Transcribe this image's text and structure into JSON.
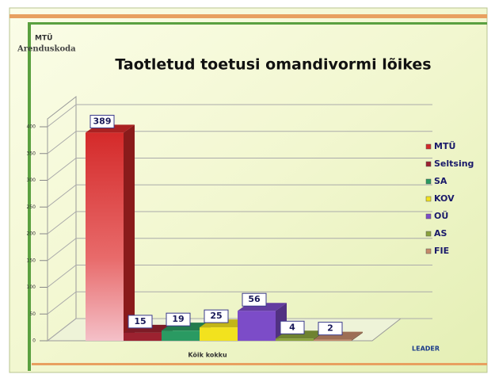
{
  "logo": {
    "line1": "MTÜ",
    "line2": "Arenduskoda"
  },
  "footer_logo": "LEADER",
  "chart_data": {
    "type": "bar3d",
    "title": "Taotletud toetusi omandivormi lõikes",
    "categories": [
      "Kõik kokku"
    ],
    "series": [
      {
        "name": "MTÜ",
        "color": "#d42a2a",
        "values": [
          389
        ]
      },
      {
        "name": "Seltsing",
        "color": "#9c2230",
        "values": [
          15
        ]
      },
      {
        "name": "SA",
        "color": "#2a9a62",
        "values": [
          19
        ]
      },
      {
        "name": "KOV",
        "color": "#f2e21e",
        "values": [
          25
        ]
      },
      {
        "name": "OÜ",
        "color": "#7c4cc8",
        "values": [
          56
        ]
      },
      {
        "name": "AS",
        "color": "#8aa23c",
        "values": [
          4
        ]
      },
      {
        "name": "FIE",
        "color": "#c48a6a",
        "values": [
          2
        ]
      }
    ],
    "ylim": [
      0,
      400
    ],
    "yticks": [
      0,
      50,
      100,
      150,
      200,
      250,
      300,
      350,
      400
    ],
    "grid": true,
    "legend": "right"
  }
}
